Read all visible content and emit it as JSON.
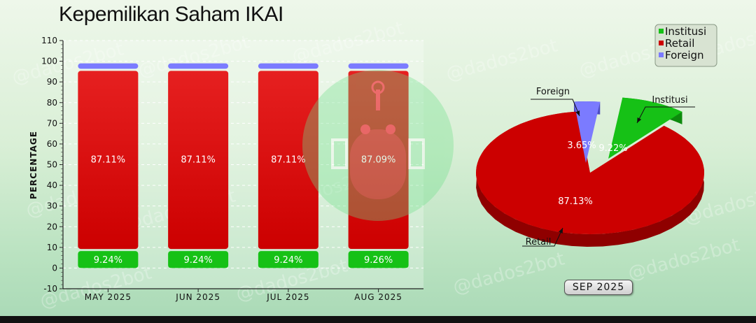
{
  "title": "Kepemilikan Saham IKAI",
  "period_label": "SEP 2025",
  "watermark": "@dados2bot",
  "colors": {
    "institusi": "#16c116",
    "retail": "#cc0000",
    "foreign": "#7b7bff"
  },
  "chart_data": [
    {
      "type": "bar",
      "stacked": true,
      "ylabel": "PERCENTAGE",
      "xlabel": "",
      "ylim": [
        -10,
        110
      ],
      "yticks": [
        -10,
        0,
        10,
        20,
        30,
        40,
        50,
        60,
        70,
        80,
        90,
        100,
        110
      ],
      "categories": [
        "MAY 2025",
        "JUN 2025",
        "JUL 2025",
        "AUG 2025"
      ],
      "grid": true,
      "series": [
        {
          "name": "Institusi",
          "values": [
            9.24,
            9.24,
            9.24,
            9.26
          ],
          "labels": [
            "9.24%",
            "9.24%",
            "9.24%",
            "9.26%"
          ]
        },
        {
          "name": "Retail",
          "values": [
            87.11,
            87.11,
            87.11,
            87.09
          ],
          "labels": [
            "87.11%",
            "87.11%",
            "87.11%",
            "87.09%"
          ]
        },
        {
          "name": "Foreign",
          "values": [
            3.65,
            3.65,
            3.65,
            3.65
          ]
        }
      ]
    },
    {
      "type": "pie",
      "legend": "top-right",
      "slices": [
        {
          "name": "Institusi",
          "value": 9.22,
          "label": "9.22%"
        },
        {
          "name": "Retail",
          "value": 87.13,
          "label": "87.13%"
        },
        {
          "name": "Foreign",
          "value": 3.65,
          "label": "3.65%"
        }
      ]
    }
  ]
}
